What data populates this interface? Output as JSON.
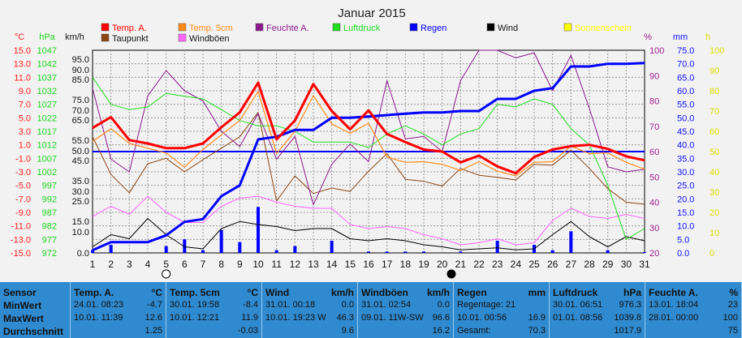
{
  "chart_data": {
    "type": "line",
    "title": "Januar 2015",
    "x": [
      1,
      2,
      3,
      4,
      5,
      6,
      7,
      8,
      9,
      10,
      11,
      12,
      13,
      14,
      15,
      16,
      17,
      18,
      19,
      20,
      21,
      22,
      23,
      24,
      25,
      26,
      27,
      28,
      29,
      30,
      31
    ],
    "axes": {
      "temp": {
        "unit": "°C",
        "ticks": [
          "15.0",
          "13.0",
          "11.0",
          "9.0",
          "7.0",
          "5.0",
          "3.0",
          "1.0",
          "-1.0",
          "-3.0",
          "-5.0",
          "-7.0",
          "-9.0",
          "-11.0",
          "-13.0",
          "-15.0"
        ],
        "range": [
          -15,
          15
        ],
        "color": "#ff2020"
      },
      "pressure": {
        "unit": "hPa",
        "ticks": [
          "1047",
          "1042",
          "1037",
          "1032",
          "1027",
          "1022",
          "1017",
          "1012",
          "1007",
          "1002",
          "997",
          "992",
          "987",
          "982",
          "977",
          "972"
        ],
        "range": [
          972,
          1047
        ],
        "color": "#1fd61f"
      },
      "wind": {
        "unit": "km/h",
        "ticks": [
          "95.0",
          "90.0",
          "85.0",
          "75.0",
          "70.0",
          "65.0",
          "55.0",
          "50.0",
          "45.0",
          "35.0",
          "30.0",
          "25.0",
          "15.0",
          "10.0",
          "0.0"
        ]
      },
      "humidity": {
        "unit": "%",
        "ticks": [
          "100",
          "90",
          "80",
          "70",
          "60",
          "50",
          "40",
          "30",
          "20"
        ],
        "range": [
          20,
          100
        ],
        "color": "#a0208f"
      },
      "rain": {
        "unit": "mm",
        "ticks": [
          "75.0",
          "70.0",
          "65.0",
          "60.0",
          "55.0",
          "50.0",
          "45.0",
          "40.0",
          "35.0",
          "30.0",
          "25.0",
          "20.0",
          "15.0",
          "10.0",
          "5.0",
          "0.0"
        ],
        "range": [
          0,
          75
        ],
        "color": "#1010ff"
      },
      "sun": {
        "unit": "h",
        "ticks": [
          "100",
          "90",
          "80",
          "70",
          "60",
          "50",
          "40",
          "30",
          "20",
          "10",
          "0"
        ],
        "range": [
          0,
          100
        ],
        "color": "#e0e000"
      }
    },
    "legend": [
      {
        "name": "Temp. A.",
        "color": "#ff0000"
      },
      {
        "name": "Temp. 5cm",
        "color": "#ff8c1a"
      },
      {
        "name": "Feuchte A.",
        "color": "#8b1a8b"
      },
      {
        "name": "Luftdruck",
        "color": "#22dd22"
      },
      {
        "name": "Regen",
        "color": "#0000ff"
      },
      {
        "name": "Wind",
        "color": "#000000"
      },
      {
        "name": "Sonnenschein",
        "color": "#ffff00"
      },
      {
        "name": "Taupunkt",
        "color": "#8b4513"
      },
      {
        "name": "Windböen",
        "color": "#ff66ff"
      }
    ],
    "series": [
      {
        "name": "Temp. A.",
        "axis": "temp",
        "values": [
          3.5,
          5.1,
          1.7,
          1.2,
          0.5,
          0.5,
          1.2,
          3.6,
          5.8,
          10.2,
          1.8,
          4.6,
          10.0,
          6.0,
          3.3,
          6.1,
          2.6,
          1.4,
          0.3,
          0.0,
          -1.6,
          -0.6,
          -2.2,
          -3.2,
          -0.8,
          0.3,
          0.8,
          1.0,
          0.4,
          -0.7,
          -1.3
        ]
      },
      {
        "name": "Temp. 5cm",
        "axis": "temp",
        "values": [
          1.5,
          3.4,
          1.2,
          0.5,
          -0.2,
          -2.3,
          0.3,
          2.5,
          4.6,
          8.9,
          -0.3,
          3.0,
          8.3,
          4.1,
          2.7,
          4.2,
          -0.8,
          -1.6,
          -1.5,
          -1.9,
          -2.8,
          -1.5,
          -2.9,
          -3.6,
          -1.6,
          -1.5,
          0.8,
          -0.3,
          -0.2,
          -1.6,
          -2.6
        ]
      },
      {
        "name": "Taupunkt",
        "axis": "temp",
        "values": [
          2.2,
          -3.4,
          -6.1,
          -1.8,
          -1.0,
          -3.0,
          -1.2,
          0.5,
          2.2,
          5.8,
          -7.3,
          -3.6,
          -6.2,
          -5.4,
          -5.9,
          -2.9,
          -0.3,
          -4.1,
          -4.4,
          -5.1,
          -2.5,
          -3.5,
          -3.8,
          -4.2,
          -1.9,
          -2.0,
          0.2,
          -2.5,
          -5.5,
          -7.5,
          -7.8
        ]
      },
      {
        "name": "Feuchte A.",
        "axis": "humidity",
        "values": [
          85,
          57,
          52,
          82,
          92,
          84,
          80,
          68,
          62,
          75,
          57,
          66,
          39,
          55,
          63,
          56,
          88,
          65,
          66,
          60,
          88,
          100,
          100,
          97,
          99,
          84,
          98,
          77,
          54,
          52,
          53
        ]
      },
      {
        "name": "Luftdruck",
        "axis": "pressure",
        "values": [
          1037,
          1027,
          1025,
          1026,
          1031,
          1030,
          1029,
          1025,
          1021,
          1019,
          1019,
          1017,
          1013,
          1013,
          1013,
          1011,
          1016,
          1019,
          1016,
          1012,
          1016,
          1018,
          1027,
          1026,
          1029,
          1027,
          1018,
          1012,
          997,
          977,
          981
        ]
      },
      {
        "name": "Regen",
        "axis": "rain",
        "values": [
          1.0,
          4.0,
          4.0,
          4.0,
          6.5,
          11.5,
          12.5,
          21.0,
          25.0,
          42.0,
          43.0,
          45.5,
          45.5,
          50.0,
          50.0,
          50.5,
          51.0,
          51.5,
          52.0,
          52.0,
          52.5,
          52.5,
          57.0,
          57.0,
          60.0,
          61.0,
          69.0,
          69.0,
          70.0,
          70.0,
          70.3
        ]
      },
      {
        "name": "Regen (Tag)",
        "axis": "rain",
        "type": "bar",
        "values": [
          1.0,
          3.0,
          0,
          0,
          2.5,
          5.0,
          1.0,
          8.5,
          4.0,
          17.0,
          1.0,
          2.5,
          0,
          4.5,
          0,
          0.5,
          0.5,
          0.5,
          0.5,
          0,
          0.5,
          0,
          4.5,
          0,
          3.0,
          1.0,
          8.0,
          0,
          1.0,
          0,
          0.3
        ]
      },
      {
        "name": "Wind",
        "axis": "wind",
        "values": [
          3.0,
          9.0,
          7.0,
          17.0,
          9.0,
          3.0,
          2.0,
          12.0,
          15.5,
          14.0,
          13.0,
          11.0,
          12.0,
          12.0,
          7.0,
          6.0,
          7.0,
          6.0,
          4.0,
          3.0,
          1.5,
          2.0,
          2.5,
          1.5,
          2.0,
          9.0,
          15.5,
          8.0,
          3.0,
          8.0,
          6.0
        ]
      },
      {
        "name": "Windböen",
        "axis": "wind",
        "values": [
          18.0,
          23.0,
          19.0,
          28.0,
          20.0,
          15.0,
          15.0,
          23.0,
          27.0,
          28.0,
          25.0,
          23.0,
          22.0,
          22.0,
          14.0,
          12.0,
          13.0,
          12.0,
          9.0,
          7.0,
          4.0,
          5.0,
          7.0,
          4.0,
          5.0,
          16.0,
          22.0,
          18.0,
          17.0,
          19.0,
          17.0
        ]
      }
    ],
    "zero_line": {
      "axis": "temp",
      "value": 0
    },
    "grid": true
  },
  "stats": {
    "row_labels": [
      "Sensor",
      "MinWert",
      "MaxWert",
      "Durchschnitt"
    ],
    "columns": [
      {
        "name": "Temp. A.",
        "unit": "°C",
        "rows": [
          [
            "24.01.  08:23",
            "-4.7"
          ],
          [
            "10.01.  11:39",
            "12.6"
          ],
          [
            "",
            "1.25"
          ]
        ]
      },
      {
        "name": "Temp. 5cm",
        "unit": "°C",
        "rows": [
          [
            "30.01.  19:58",
            "-8.4"
          ],
          [
            "10.01.  12:21",
            "11.9"
          ],
          [
            "",
            "-0.03"
          ]
        ]
      },
      {
        "name": "Wind",
        "unit": "km/h",
        "rows": [
          [
            "31.01.  00:18",
            "0.0"
          ],
          [
            "10.01.  19:23  W",
            "46.3"
          ],
          [
            "",
            "9.6"
          ]
        ]
      },
      {
        "name": "Windböen",
        "unit": "km/h",
        "rows": [
          [
            "31.01.  02:54",
            "0.0"
          ],
          [
            "09.01.  11W-SW",
            "96.6"
          ],
          [
            "",
            "16.2"
          ]
        ]
      },
      {
        "name": "Regen",
        "unit": "mm",
        "rows": [
          [
            "Regentage: 21",
            ""
          ],
          [
            "10.01.  00:56",
            "16.9"
          ],
          [
            "Gesamt:",
            "70.3"
          ]
        ]
      },
      {
        "name": "Luftdruck",
        "unit": "hPa",
        "rows": [
          [
            "30.01.  06:51",
            "976.3"
          ],
          [
            "01.01.  08:56",
            "1039.8"
          ],
          [
            "",
            "1017.9"
          ]
        ]
      },
      {
        "name": "Feuchte A.",
        "unit": "%",
        "rows": [
          [
            "13.01.  18:04",
            "23"
          ],
          [
            "28.01.  00:00",
            "100"
          ],
          [
            "",
            "75"
          ]
        ]
      }
    ]
  },
  "moon_markers": [
    {
      "day": 5,
      "phase": "full-moon"
    },
    {
      "day": 20.5,
      "phase": "new-moon"
    }
  ]
}
